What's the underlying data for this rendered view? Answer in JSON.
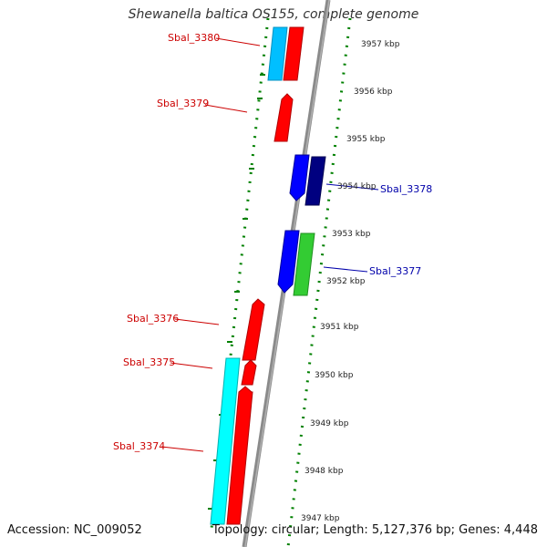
{
  "title": "Shewanella baltica OS155, complete genome",
  "footer": {
    "accession": "Accession: NC_009052",
    "summary": "Topology: circular; Length: 5,127,376 bp; Genes: 4,448"
  },
  "ruler_labels": [
    "3957 kbp",
    "3956 kbp",
    "3955 kbp",
    "3954 kbp",
    "3953 kbp",
    "3952 kbp",
    "3951 kbp",
    "3950 kbp",
    "3949 kbp",
    "3948 kbp",
    "3947 kbp"
  ],
  "gene_labels": [
    "Sbal_3380",
    "Sbal_3379",
    "Sbal_3378",
    "Sbal_3377",
    "Sbal_3376",
    "Sbal_3375",
    "Sbal_3374"
  ],
  "colors": {
    "forward": "#ff0000",
    "reverse": "#0000ff",
    "reverse_dark": "#000080",
    "cyan": "#00ffff",
    "light_blue": "#00bfff",
    "green": "#33cc33",
    "backbone": "#808080",
    "ruler": "#008000",
    "label_red": "#cc0000",
    "label_blue": "#0000aa"
  }
}
